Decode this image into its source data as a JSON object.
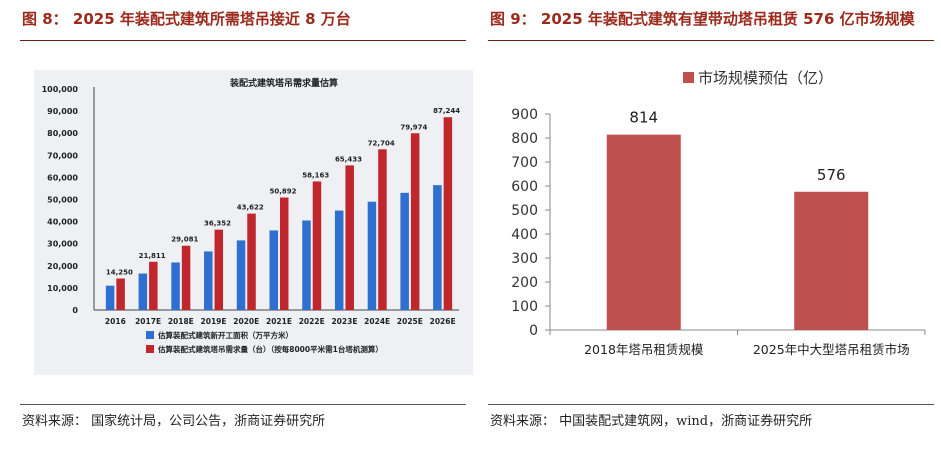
{
  "figure8": {
    "title": "图 8：  2025 年装配式建筑所需塔吊接近 8 万台",
    "source": "资料来源：  国家统计局，公司公告，浙商证券研究所"
  },
  "figure9": {
    "title": "图 9：  2025 年装配式建筑有望带动塔吊租赁 576 亿市场规模",
    "source": "资料来源：  中国装配式建筑网，wind，浙商证券研究所"
  },
  "colors": {
    "blue": "#2f6fd0",
    "red": "#c0272d",
    "bar9": "#c0504d",
    "title": "#9b2a1c"
  },
  "chart_data": [
    {
      "type": "bar",
      "title": "装配式建筑塔吊需求量估算",
      "categories": [
        "2016",
        "2017E",
        "2018E",
        "2019E",
        "2020E",
        "2021E",
        "2022E",
        "2023E",
        "2024E",
        "2025E",
        "2026E"
      ],
      "series": [
        {
          "name": "估算装配式建筑新开工面积（万平方米）",
          "values": [
            11000,
            16500,
            21500,
            26500,
            31500,
            36000,
            40500,
            45000,
            49000,
            53000,
            56500
          ]
        },
        {
          "name": "估算装配式建筑塔吊需求量（台）（按每8000平米需1台塔机测算）",
          "values": [
            14250,
            21811,
            29081,
            36352,
            43622,
            50892,
            58163,
            65433,
            72704,
            79974,
            87244
          ]
        }
      ],
      "data_labels": [
        "14,250",
        "21,811",
        "29,081",
        "36,352",
        "43,622",
        "50,892",
        "58,163",
        "65,433",
        "72,704",
        "79,974",
        "87,244"
      ],
      "yticks": [
        "100,000",
        "90,000",
        "80,000",
        "70,000",
        "60,000",
        "50,000",
        "40,000",
        "30,000",
        "20,000",
        "10,000",
        "0"
      ],
      "ylim": [
        0,
        100000
      ]
    },
    {
      "type": "bar",
      "categories": [
        "2018年塔吊租赁规模",
        "2025年中大型塔吊租赁市场"
      ],
      "values": [
        814,
        576
      ],
      "data_labels": [
        "814",
        "576"
      ],
      "legend": "市场规模预估（亿）",
      "yticks": [
        "900",
        "800",
        "700",
        "600",
        "500",
        "400",
        "300",
        "200",
        "100",
        "0"
      ],
      "ylim": [
        0,
        900
      ]
    }
  ]
}
